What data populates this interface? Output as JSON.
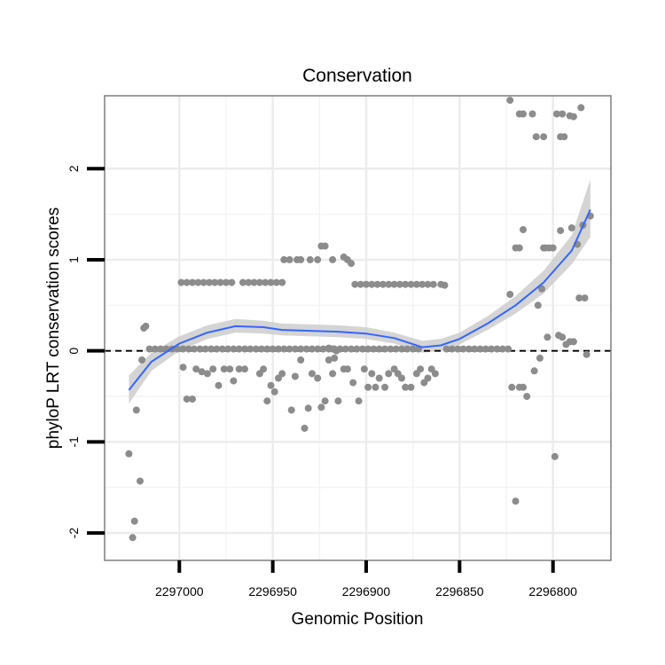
{
  "chart_data": {
    "type": "scatter",
    "title": "Conservation",
    "xlabel": "Genomic Position",
    "ylabel": "phyloP LRT conservation scores",
    "xlim": [
      2297040,
      2296769
    ],
    "ylim": [
      -2.3,
      2.8
    ],
    "x_reversed": true,
    "xticks": [
      {
        "value": 2297000,
        "label": "2297000"
      },
      {
        "value": 2296950,
        "label": "2296950"
      },
      {
        "value": 2296900,
        "label": "2296900"
      },
      {
        "value": 2296850,
        "label": "2296850"
      },
      {
        "value": 2296800,
        "label": "2296800"
      }
    ],
    "yticks": [
      {
        "value": -2,
        "label": "-2"
      },
      {
        "value": -1,
        "label": "-1"
      },
      {
        "value": 0,
        "label": "0"
      },
      {
        "value": 1,
        "label": "1"
      },
      {
        "value": 2,
        "label": "2"
      }
    ],
    "grid": true,
    "reference_line": {
      "y": 0,
      "style": "dashed",
      "color": "#000000"
    },
    "series": [
      {
        "name": "conservation scores",
        "color": "#8c8c8c",
        "points": [
          [
            2297027,
            -1.13
          ],
          [
            2297025,
            -2.05
          ],
          [
            2297024,
            -1.87
          ],
          [
            2297023,
            -0.65
          ],
          [
            2297021,
            -1.43
          ],
          [
            2297020,
            -0.1
          ],
          [
            2297019,
            0.25
          ],
          [
            2297018,
            0.27
          ],
          [
            2297016,
            0.02
          ],
          [
            2297013,
            0.02
          ],
          [
            2297010,
            0.02
          ],
          [
            2297007,
            0.02
          ],
          [
            2297004,
            0.02
          ],
          [
            2297001,
            0.02
          ],
          [
            2296998,
            0.02
          ],
          [
            2296995,
            0.02
          ],
          [
            2296992,
            0.02
          ],
          [
            2296989,
            0.02
          ],
          [
            2296986,
            0.02
          ],
          [
            2296983,
            0.02
          ],
          [
            2296980,
            0.02
          ],
          [
            2296977,
            0.02
          ],
          [
            2296974,
            0.02
          ],
          [
            2296971,
            0.02
          ],
          [
            2296968,
            0.02
          ],
          [
            2296965,
            0.02
          ],
          [
            2296962,
            0.02
          ],
          [
            2296959,
            0.02
          ],
          [
            2296956,
            0.02
          ],
          [
            2296953,
            0.02
          ],
          [
            2296950,
            0.02
          ],
          [
            2296947,
            0.02
          ],
          [
            2296944,
            0.02
          ],
          [
            2296941,
            0.02
          ],
          [
            2296938,
            0.02
          ],
          [
            2296935,
            0.02
          ],
          [
            2296932,
            0.02
          ],
          [
            2296929,
            0.02
          ],
          [
            2296926,
            0.02
          ],
          [
            2296923,
            0.02
          ],
          [
            2296920,
            0.02
          ],
          [
            2296917,
            0.02
          ],
          [
            2296914,
            0.02
          ],
          [
            2296911,
            0.02
          ],
          [
            2296908,
            0.02
          ],
          [
            2296905,
            0.02
          ],
          [
            2296902,
            0.02
          ],
          [
            2296899,
            0.02
          ],
          [
            2296896,
            0.02
          ],
          [
            2296893,
            0.02
          ],
          [
            2296890,
            0.02
          ],
          [
            2296887,
            0.02
          ],
          [
            2296884,
            0.02
          ],
          [
            2296881,
            0.02
          ],
          [
            2296878,
            0.02
          ],
          [
            2296875,
            0.02
          ],
          [
            2296872,
            0.02
          ],
          [
            2296999,
            0.75
          ],
          [
            2296996,
            0.75
          ],
          [
            2296993,
            0.75
          ],
          [
            2296990,
            0.75
          ],
          [
            2296987,
            0.75
          ],
          [
            2296984,
            0.75
          ],
          [
            2296981,
            0.75
          ],
          [
            2296978,
            0.75
          ],
          [
            2296975,
            0.75
          ],
          [
            2296972,
            0.75
          ],
          [
            2296966,
            0.75
          ],
          [
            2296963,
            0.75
          ],
          [
            2296960,
            0.75
          ],
          [
            2296957,
            0.75
          ],
          [
            2296954,
            0.75
          ],
          [
            2296951,
            0.75
          ],
          [
            2296948,
            0.75
          ],
          [
            2296945,
            0.75
          ],
          [
            2296998,
            -0.18
          ],
          [
            2296996,
            -0.53
          ],
          [
            2296993,
            -0.53
          ],
          [
            2296991,
            -0.2
          ],
          [
            2296988,
            -0.23
          ],
          [
            2296985,
            -0.25
          ],
          [
            2296982,
            -0.2
          ],
          [
            2296979,
            -0.38
          ],
          [
            2296976,
            -0.2
          ],
          [
            2296973,
            -0.2
          ],
          [
            2296971,
            -0.33
          ],
          [
            2296968,
            -0.2
          ],
          [
            2296965,
            -0.2
          ],
          [
            2296957,
            -0.25
          ],
          [
            2296955,
            -0.2
          ],
          [
            2296953,
            -0.55
          ],
          [
            2296951,
            -0.38
          ],
          [
            2296949,
            -0.45
          ],
          [
            2296947,
            -0.3
          ],
          [
            2296945,
            -0.25
          ],
          [
            2296940,
            -0.65
          ],
          [
            2296938,
            -0.28
          ],
          [
            2296935,
            -0.1
          ],
          [
            2296933,
            -0.85
          ],
          [
            2296931,
            -0.63
          ],
          [
            2296929,
            -0.25
          ],
          [
            2296926,
            -0.3
          ],
          [
            2296924,
            -0.62
          ],
          [
            2296922,
            -0.55
          ],
          [
            2296920,
            -0.1
          ],
          [
            2296918,
            -0.25
          ],
          [
            2296917,
            -0.08
          ],
          [
            2296915,
            -0.55
          ],
          [
            2296912,
            -0.2
          ],
          [
            2296910,
            -0.2
          ],
          [
            2296907,
            -0.35
          ],
          [
            2296904,
            -0.55
          ],
          [
            2296901,
            -0.2
          ],
          [
            2296899,
            -0.4
          ],
          [
            2296897,
            -0.25
          ],
          [
            2296895,
            -0.4
          ],
          [
            2296893,
            -0.3
          ],
          [
            2296890,
            -0.4
          ],
          [
            2296888,
            -0.25
          ],
          [
            2296885,
            -0.2
          ],
          [
            2296883,
            -0.25
          ],
          [
            2296881,
            -0.3
          ],
          [
            2296879,
            -0.4
          ],
          [
            2296876,
            -0.4
          ],
          [
            2296873,
            -0.25
          ],
          [
            2296871,
            -0.2
          ],
          [
            2296869,
            -0.35
          ],
          [
            2296867,
            -0.3
          ],
          [
            2296865,
            -0.2
          ],
          [
            2296863,
            -0.25
          ],
          [
            2296944,
            1.0
          ],
          [
            2296941,
            1.0
          ],
          [
            2296937,
            1.0
          ],
          [
            2296935,
            1.0
          ],
          [
            2296930,
            1.0
          ],
          [
            2296926,
            1.0
          ],
          [
            2296924,
            1.15
          ],
          [
            2296922,
            1.15
          ],
          [
            2296918,
            1.0
          ],
          [
            2296912,
            1.03
          ],
          [
            2296910,
            1.0
          ],
          [
            2296908,
            0.96
          ],
          [
            2296906,
            0.73
          ],
          [
            2296903,
            0.73
          ],
          [
            2296900,
            0.73
          ],
          [
            2296897,
            0.73
          ],
          [
            2296894,
            0.73
          ],
          [
            2296891,
            0.73
          ],
          [
            2296888,
            0.73
          ],
          [
            2296885,
            0.73
          ],
          [
            2296882,
            0.73
          ],
          [
            2296879,
            0.73
          ],
          [
            2296876,
            0.73
          ],
          [
            2296873,
            0.73
          ],
          [
            2296870,
            0.73
          ],
          [
            2296867,
            0.73
          ],
          [
            2296864,
            0.73
          ],
          [
            2296860,
            0.73
          ],
          [
            2296858,
            0.72
          ],
          [
            2296920,
            0.03
          ],
          [
            2296918,
            0.02
          ],
          [
            2296916,
            0.0
          ],
          [
            2296857,
            0.02
          ],
          [
            2296854,
            0.02
          ],
          [
            2296851,
            0.02
          ],
          [
            2296848,
            0.02
          ],
          [
            2296845,
            0.02
          ],
          [
            2296842,
            0.02
          ],
          [
            2296839,
            0.02
          ],
          [
            2296836,
            0.02
          ],
          [
            2296833,
            0.02
          ],
          [
            2296830,
            0.02
          ],
          [
            2296827,
            0.02
          ],
          [
            2296824,
            0.02
          ],
          [
            2296823,
            0.62
          ],
          [
            2296822,
            -0.4
          ],
          [
            2296818,
            -0.4
          ],
          [
            2296816,
            -0.4
          ],
          [
            2296814,
            -0.5
          ],
          [
            2296820,
            -1.65
          ],
          [
            2296808,
            0.5
          ],
          [
            2296806,
            0.68
          ],
          [
            2296810,
            -0.22
          ],
          [
            2296807,
            -0.08
          ],
          [
            2296804,
            1.13
          ],
          [
            2296802,
            1.13
          ],
          [
            2296805,
            1.13
          ],
          [
            2296800,
            1.13
          ],
          [
            2296799,
            -1.16
          ],
          [
            2296797,
            0.17
          ],
          [
            2296795,
            0.15
          ],
          [
            2296793,
            0.07
          ],
          [
            2296791,
            0.1
          ],
          [
            2296789,
            0.1
          ],
          [
            2296786,
            0.58
          ],
          [
            2296783,
            0.58
          ],
          [
            2296784,
            1.38
          ],
          [
            2296790,
            1.35
          ],
          [
            2296787,
            1.17
          ],
          [
            2296782,
            -0.04
          ],
          [
            2296780,
            1.48
          ],
          [
            2296796,
            1.32
          ],
          [
            2296803,
            0.15
          ],
          [
            2296818,
            1.13
          ],
          [
            2296820,
            1.13
          ],
          [
            2296816,
            1.33
          ],
          [
            2296823,
            2.75
          ],
          [
            2296816,
            2.6
          ],
          [
            2296818,
            2.6
          ],
          [
            2296811,
            2.6
          ],
          [
            2296809,
            2.35
          ],
          [
            2296805,
            2.35
          ],
          [
            2296798,
            2.6
          ],
          [
            2296795,
            2.6
          ],
          [
            2296791,
            2.58
          ],
          [
            2296789,
            2.57
          ],
          [
            2296785,
            2.67
          ],
          [
            2296796,
            2.35
          ],
          [
            2296794,
            2.35
          ]
        ]
      },
      {
        "name": "loess fit",
        "type": "line",
        "color": "#3366ff",
        "x": [
          2297027,
          2297015,
          2297000,
          2296985,
          2296970,
          2296955,
          2296945,
          2296930,
          2296915,
          2296900,
          2296885,
          2296870,
          2296860,
          2296850,
          2296835,
          2296820,
          2296805,
          2296790,
          2296780
        ],
        "y": [
          -0.43,
          -0.12,
          0.08,
          0.2,
          0.27,
          0.26,
          0.23,
          0.22,
          0.21,
          0.19,
          0.14,
          0.04,
          0.06,
          0.13,
          0.3,
          0.5,
          0.75,
          1.1,
          1.55
        ]
      },
      {
        "name": "confidence band",
        "type": "area",
        "color": "#cccccc",
        "x": [
          2297027,
          2297015,
          2297000,
          2296985,
          2296970,
          2296955,
          2296945,
          2296930,
          2296915,
          2296900,
          2296885,
          2296870,
          2296860,
          2296850,
          2296835,
          2296820,
          2296805,
          2296790,
          2296780
        ],
        "lower": [
          -0.58,
          -0.22,
          0.0,
          0.13,
          0.2,
          0.19,
          0.17,
          0.16,
          0.15,
          0.13,
          0.08,
          -0.02,
          0.0,
          0.07,
          0.23,
          0.41,
          0.63,
          0.95,
          1.25
        ],
        "upper": [
          -0.27,
          -0.02,
          0.16,
          0.28,
          0.35,
          0.33,
          0.3,
          0.29,
          0.28,
          0.26,
          0.2,
          0.11,
          0.13,
          0.2,
          0.38,
          0.6,
          0.88,
          1.27,
          1.88
        ]
      }
    ]
  }
}
